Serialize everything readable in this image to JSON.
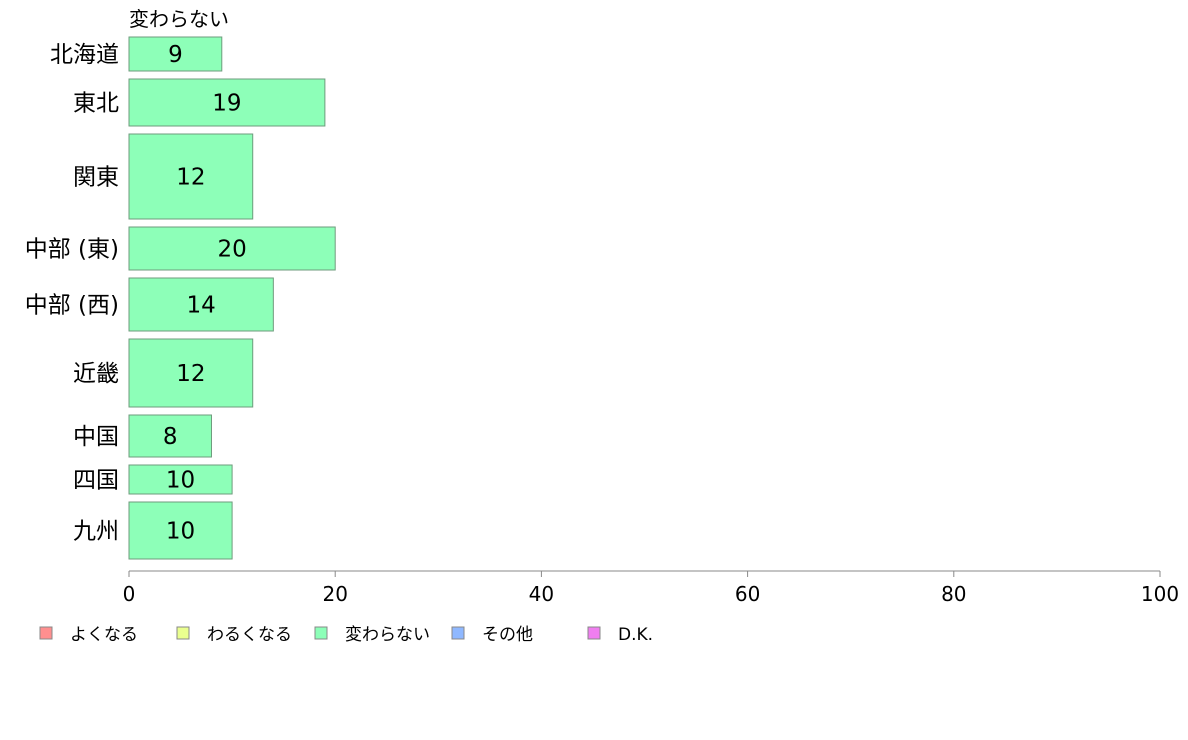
{
  "chart_data": {
    "type": "bar",
    "orientation": "horizontal",
    "series_title": "変わらない",
    "categories": [
      "北海道",
      "東北",
      "関東",
      "中部 (東)",
      "中部 (西)",
      "近畿",
      "中国",
      "四国",
      "九州"
    ],
    "series": [
      {
        "name": "変わらない",
        "values": [
          9,
          19,
          12,
          20,
          14,
          12,
          8,
          10,
          10
        ],
        "color": "#8dffb8"
      }
    ],
    "xlim": [
      0,
      100
    ],
    "xticks": [
      "0",
      "20",
      "40",
      "60",
      "80",
      "100"
    ],
    "grid": false,
    "legend_position": "bottom-left",
    "legend": [
      {
        "label": "よくなる",
        "color": "#ff8f8f"
      },
      {
        "label": "わるくなる",
        "color": "#eaff8f"
      },
      {
        "label": "変わらない",
        "color": "#8dffb8"
      },
      {
        "label": "その他",
        "color": "#8fb8ff"
      },
      {
        "label": "D.K.",
        "color": "#f07ef0"
      }
    ],
    "bar_stroke_color": "#6e9b7c",
    "axis_color": "#888888"
  }
}
